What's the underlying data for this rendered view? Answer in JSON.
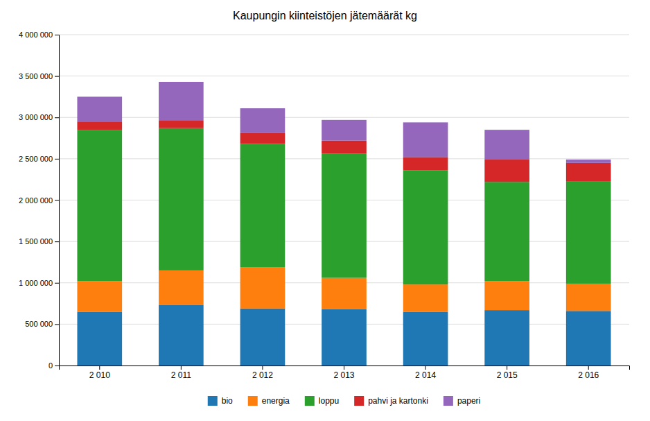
{
  "chart_data": {
    "type": "bar",
    "title": "Kaupungin kiinteistöjen jätemäärät kg",
    "categories": [
      "2 010",
      "2 011",
      "2 012",
      "2 013",
      "2 014",
      "2 015",
      "2 016"
    ],
    "series": [
      {
        "name": "bio",
        "values": [
          650000,
          730000,
          690000,
          680000,
          650000,
          670000,
          660000
        ]
      },
      {
        "name": "energia",
        "values": [
          370000,
          420000,
          500000,
          380000,
          330000,
          350000,
          330000
        ]
      },
      {
        "name": "loppu",
        "values": [
          1830000,
          1720000,
          1490000,
          1500000,
          1380000,
          1200000,
          1240000
        ]
      },
      {
        "name": "pahvi ja kartonki",
        "values": [
          100000,
          90000,
          130000,
          160000,
          160000,
          270000,
          220000
        ]
      },
      {
        "name": "paperi",
        "values": [
          300000,
          470000,
          300000,
          250000,
          420000,
          360000,
          40000
        ]
      }
    ],
    "ylim": [
      0,
      4000000
    ],
    "yticks": [
      0,
      {
        "value": 500000,
        "label": "500 000"
      },
      {
        "value": 1000000,
        "label": "1 000 000"
      },
      {
        "value": 1500000,
        "label": "1 500 000"
      },
      {
        "value": 2000000,
        "label": "2 000 000"
      },
      {
        "value": 2500000,
        "label": "2 500 000"
      },
      {
        "value": 3000000,
        "label": "3 000 000"
      },
      {
        "value": 3500000,
        "label": "3 500 000"
      },
      {
        "value": 4000000,
        "label": "4 000 000"
      }
    ],
    "grid": true,
    "stacked": true,
    "legend": "bottom"
  }
}
